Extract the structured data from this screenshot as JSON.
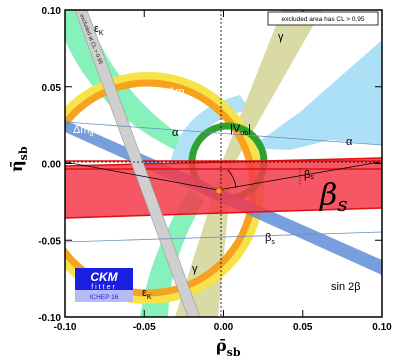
{
  "chart_data": {
    "type": "scatter",
    "title": "",
    "xlabel": "ρ̄",
    "xlabel_sub": "sb",
    "ylabel": "η̄",
    "ylabel_sub": "sb",
    "xlim": [
      -0.1,
      0.1
    ],
    "ylim": [
      -0.1,
      0.1
    ],
    "x_ticks": [
      "-0.10",
      "-0.05",
      "0.00",
      "0.05",
      "0.10"
    ],
    "y_ticks": [
      "0.10",
      "0.05",
      "0.00",
      "-0.05",
      "-0.10"
    ],
    "x_tick_values": [
      -0.1,
      -0.05,
      0.0,
      0.05,
      0.1
    ],
    "y_tick_values": [
      0.1,
      0.05,
      0.0,
      -0.05,
      -0.1
    ],
    "legend_note": "excluded area has CL > 0.95",
    "constraint_labels": {
      "eps_k_top": "ε",
      "eps_k_bottom": "ε",
      "eps_sub": "K",
      "dmd_dms": "Δm",
      "dmd_dms_amp": "& Δm",
      "dmd": "Δm",
      "d_sub": "d",
      "s_sub": "s",
      "alpha_left": "α",
      "alpha_right": "α",
      "vub": "|V",
      "vub_sub": "ub",
      "vub_close": "|",
      "gamma_top": "γ",
      "gamma_bottom": "γ",
      "beta_s_big": "β",
      "beta_s_big_sub": "s",
      "beta_s_small": "β",
      "beta_s_small_sub": "s",
      "beta_s_angle": "β",
      "beta_s_angle_sub": "s",
      "sin2beta": "sin 2β",
      "excluded_band": "excluded at CL > 0.95"
    },
    "logo": {
      "title": "CKM",
      "subtitle": "fitter",
      "tag": "ICHEP 16"
    },
    "apex": {
      "rho": -0.003,
      "eta": -0.018
    },
    "colors": {
      "eps_k": "#7ff0b6",
      "dm_outer": "#f7e24a",
      "dm_inner": "#f6a21e",
      "alpha": "#a8def5",
      "vub": "#2fa12c",
      "gamma": "#d6d69c",
      "sin2beta": "#5f8ed8",
      "beta_s": "#f33a4a",
      "excluded_band": "#cfcfcf",
      "logo_bg": "#1a1ee0"
    }
  }
}
